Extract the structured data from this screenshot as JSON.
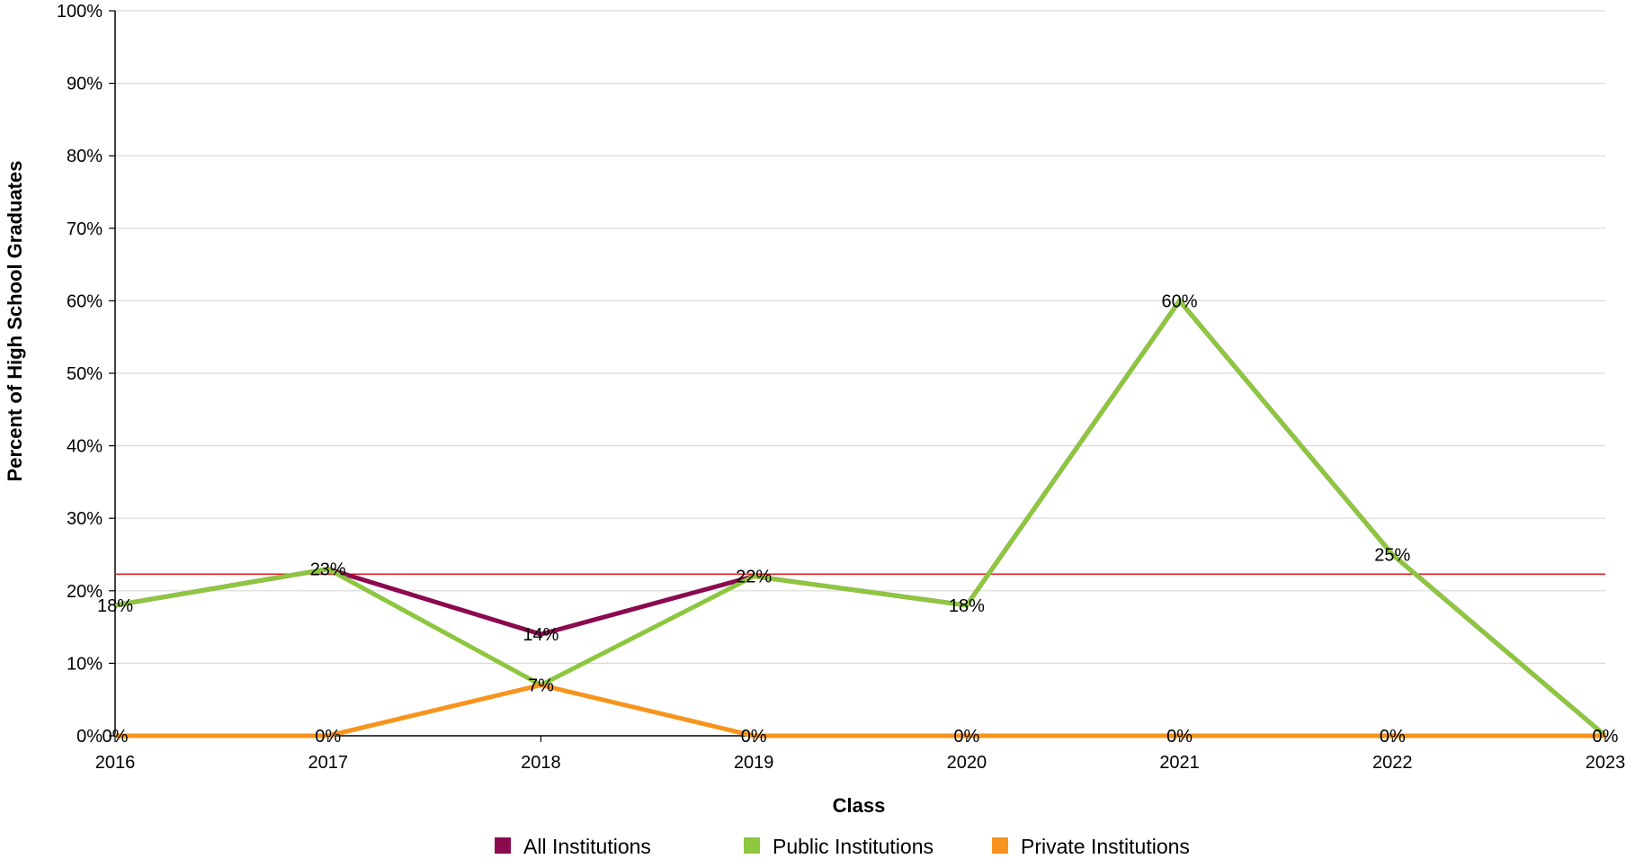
{
  "chart_data": {
    "type": "line",
    "title": "",
    "xlabel": "Class",
    "ylabel": "Percent of High School Graduates",
    "categories": [
      "2016",
      "2017",
      "2018",
      "2019",
      "2020",
      "2021",
      "2022",
      "2023"
    ],
    "ylim": [
      0,
      100
    ],
    "yticks": [
      "0%",
      "10%",
      "20%",
      "30%",
      "40%",
      "50%",
      "60%",
      "70%",
      "80%",
      "90%",
      "100%"
    ],
    "grid": true,
    "legend_position": "bottom",
    "reference_line": {
      "value": 22.3,
      "color": "#e31a1c"
    },
    "series": [
      {
        "name": "All Institutions",
        "color": "#8b0a50",
        "values": [
          18,
          23,
          14,
          22,
          18,
          60,
          25,
          0
        ]
      },
      {
        "name": "Public Institutions",
        "color": "#8dc63f",
        "values": [
          18,
          23,
          7,
          22,
          18,
          60,
          25,
          0
        ]
      },
      {
        "name": "Private Institutions",
        "color": "#f7941d",
        "values": [
          0,
          0,
          7,
          0,
          0,
          0,
          0,
          0
        ]
      }
    ],
    "data_labels": [
      {
        "x": "2016",
        "y": 18,
        "text": "18%"
      },
      {
        "x": "2017",
        "y": 23,
        "text": "23%"
      },
      {
        "x": "2018",
        "y": 14,
        "text": "14%"
      },
      {
        "x": "2018",
        "y": 7,
        "text": "7%"
      },
      {
        "x": "2019",
        "y": 22,
        "text": "22%"
      },
      {
        "x": "2020",
        "y": 18,
        "text": "18%"
      },
      {
        "x": "2021",
        "y": 60,
        "text": "60%"
      },
      {
        "x": "2022",
        "y": 25,
        "text": "25%"
      },
      {
        "x": "2016",
        "y": 0,
        "text": "0%"
      },
      {
        "x": "2017",
        "y": 0,
        "text": "0%"
      },
      {
        "x": "2019",
        "y": 0,
        "text": "0%"
      },
      {
        "x": "2020",
        "y": 0,
        "text": "0%"
      },
      {
        "x": "2021",
        "y": 0,
        "text": "0%"
      },
      {
        "x": "2022",
        "y": 0,
        "text": "0%"
      },
      {
        "x": "2023",
        "y": 0,
        "text": "0%"
      }
    ]
  }
}
